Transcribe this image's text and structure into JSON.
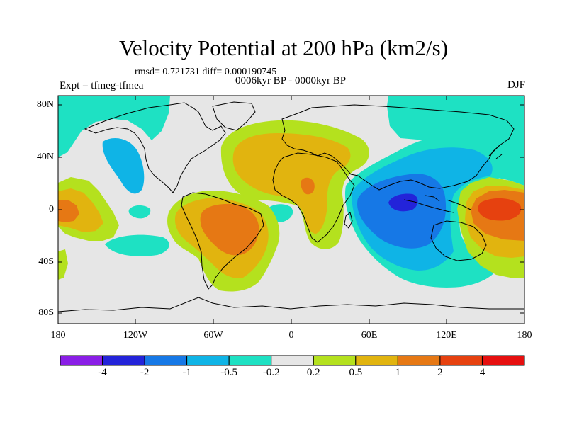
{
  "header": {
    "title": "Velocity Potential at 200 hPa (km2/s)",
    "stats": "rmsd= 0.721731 diff= 0.000190745",
    "experiment": "Expt = tfmeg-tfmea",
    "period": "0006kyr BP - 0000kyr BP",
    "season": "DJF"
  },
  "map": {
    "y_axis_labels": [
      "80N",
      "40N",
      "0",
      "40S",
      "80S"
    ],
    "x_axis_labels": [
      "180",
      "120W",
      "60W",
      "0",
      "60E",
      "120E",
      "180"
    ]
  },
  "colorbar": {
    "labels": [
      "-4",
      "-2",
      "-1",
      "-0.5",
      "-0.2",
      "0.2",
      "0.5",
      "1",
      "2",
      "4"
    ],
    "colors": [
      "#8a1ee6",
      "#2323d9",
      "#1678e6",
      "#0fb4e6",
      "#1ee1c3",
      "#e6e6e6",
      "#b4e11e",
      "#e1b40f",
      "#e67814",
      "#e6410f",
      "#e60f0f"
    ]
  },
  "field_colors": {
    "neutral": "#e6e6e6",
    "neg_02": "#1ee1c3",
    "neg_05": "#0fb4e6",
    "neg_1": "#1678e6",
    "neg_2": "#2323d9",
    "pos_02": "#b4e11e",
    "pos_05": "#e1b40f",
    "pos_1": "#e67814",
    "pos_2": "#e6410f"
  }
}
